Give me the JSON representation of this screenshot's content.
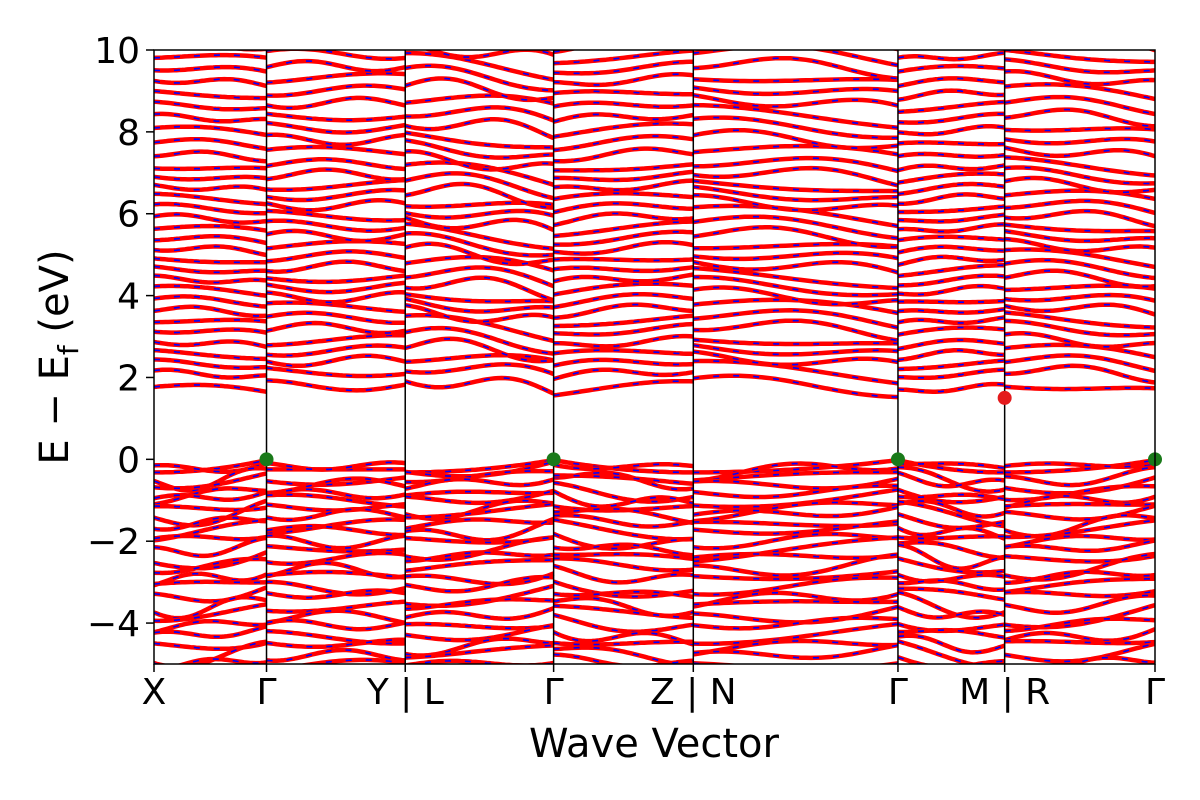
{
  "chart_data": {
    "type": "line",
    "title": "",
    "xlabel": "Wave Vector",
    "ylabel": "E − E_f (eV)",
    "ylabel_parts": {
      "main": "E − E",
      "sub": "f",
      "unit": " (eV)"
    },
    "ylim": [
      -5,
      10
    ],
    "yticks": [
      -4,
      -2,
      0,
      2,
      4,
      6,
      8,
      10
    ],
    "ytick_labels": [
      "−4",
      "−2",
      "0",
      "2",
      "4",
      "6",
      "8",
      "10"
    ],
    "x_segments": [
      {
        "from": "X",
        "to": "Γ",
        "length": 0.7436
      },
      {
        "from": "Y",
        "to": "L",
        "length": 0.9167
      },
      {
        "from": "L",
        "to": "Γ",
        "length": 0.9808
      },
      {
        "from": "Γ",
        "to": "Z",
        "length": 0.9231
      },
      {
        "from": "N",
        "to": "Γ",
        "length": 1.3526
      },
      {
        "from": "Γ",
        "to": "M",
        "length": 0.7051
      },
      {
        "from": "R",
        "to": "Γ",
        "length": 0.9936
      }
    ],
    "xticks": [
      {
        "label": "X",
        "pos": 0.0
      },
      {
        "label": "Γ",
        "pos": 0.7436
      },
      {
        "label": "Y | L",
        "pos": 1.6603
      },
      {
        "label": "Γ",
        "pos": 2.641
      },
      {
        "label": "Z | N",
        "pos": 3.5641
      },
      {
        "label": "Γ",
        "pos": 4.9167
      },
      {
        "label": "M | R",
        "pos": 5.6218
      },
      {
        "label": "Γ",
        "pos": 6.6154
      }
    ],
    "xlim": [
      0.0,
      6.6154
    ],
    "series": [],
    "legend": "none",
    "grid": false,
    "valence_band_max": {
      "energy": 0.0,
      "points_at": [
        "Γ",
        "Γ",
        "Γ",
        "Γ"
      ],
      "color": "#1a7a1a"
    },
    "conduction_band_min": {
      "energy": 1.5,
      "point_at": "M | R",
      "color": "#e41a1c"
    },
    "band_gap_eV": 1.5,
    "spin_up_color": "#ff0000",
    "spin_down_color": "#0000ff",
    "valence_band_tops": [
      0.0,
      -0.05,
      -0.32,
      -0.42,
      -0.7,
      -0.82,
      -1.05,
      -1.18,
      -1.42,
      -1.6,
      -1.82,
      -2.05,
      -2.25,
      -2.48,
      -2.72,
      -2.95,
      -3.18,
      -3.42,
      -3.65,
      -3.9,
      -4.15,
      -4.38,
      -4.62,
      -4.85
    ],
    "conduction_band_bottoms": [
      1.5,
      1.85,
      2.1,
      2.35,
      2.6,
      2.9,
      3.15,
      3.4,
      3.65,
      3.9,
      4.15,
      4.4,
      4.65,
      4.9,
      5.15,
      5.4,
      5.65,
      5.9,
      6.15,
      6.4,
      6.65,
      6.9,
      7.2,
      7.5,
      7.8,
      8.1,
      8.4,
      8.7,
      9.0,
      9.3,
      9.6,
      9.9
    ]
  }
}
